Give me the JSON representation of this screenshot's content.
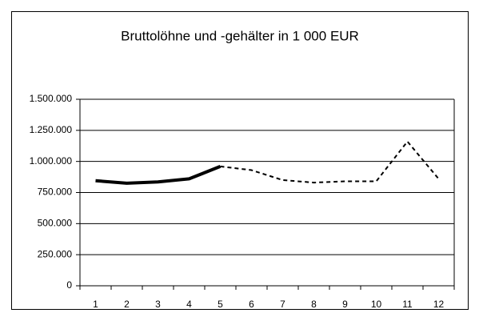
{
  "chart_data": {
    "type": "line",
    "title": "Bruttolöhne und -gehälter in 1 000 EUR",
    "categories": [
      "1",
      "2",
      "3",
      "4",
      "5",
      "6",
      "7",
      "8",
      "9",
      "10",
      "11",
      "12"
    ],
    "series": [
      {
        "color": "#000000",
        "line_style": "solid",
        "values": [
          845000,
          825000,
          835000,
          860000,
          960000,
          null,
          null,
          null,
          null,
          null,
          null,
          null
        ]
      },
      {
        "color": "#000000",
        "line_style": "dashed",
        "values": [
          null,
          null,
          null,
          null,
          960000,
          930000,
          850000,
          830000,
          840000,
          840000,
          1160000,
          860000
        ]
      }
    ],
    "ylim": [
      0,
      1500000
    ],
    "yticks": [
      0,
      {
        "value": 250000,
        "label": "250.000"
      },
      {
        "value": 500000,
        "label": "500.000"
      },
      {
        "value": 750000,
        "label": "750.000"
      },
      {
        "value": 1000000,
        "label": "1.000.000"
      },
      {
        "value": 1250000,
        "label": "1.250.000"
      },
      {
        "value": 1500000,
        "label": "1.500.000"
      }
    ],
    "grid": true
  }
}
